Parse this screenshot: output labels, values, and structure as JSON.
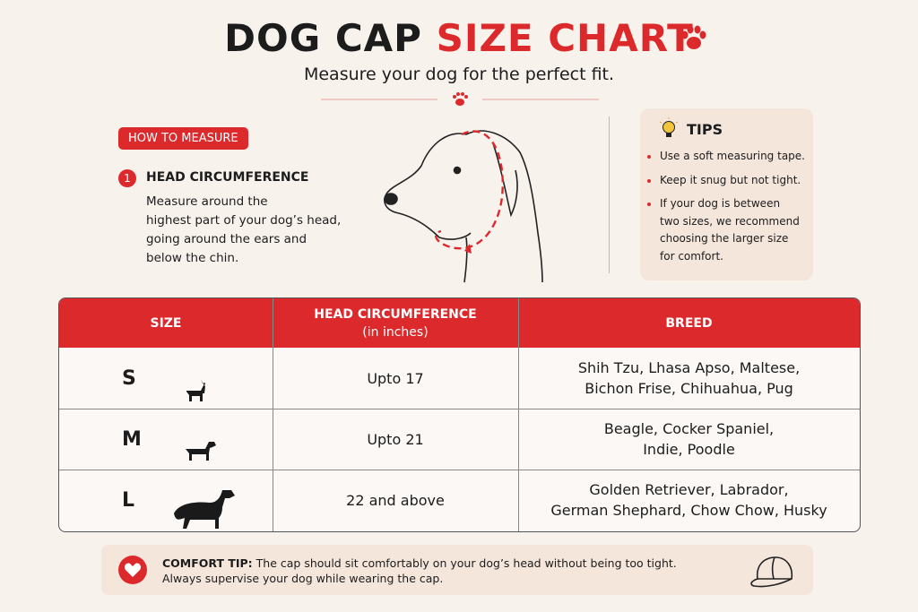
{
  "header": {
    "title_main": "DOG CAP",
    "title_accent": "SIZE CHART",
    "subtitle": "Measure your dog for the perfect fit."
  },
  "how_to_measure": {
    "badge": "HOW TO MEASURE",
    "step_number": "1",
    "step_title": "HEAD CIRCUMFERENCE",
    "step_text": [
      "Measure around the",
      "highest part of your dog’s head,",
      "going around the ears and",
      "below the chin."
    ]
  },
  "tips": {
    "title": "TIPS",
    "items": [
      [
        "Use a soft measuring tape."
      ],
      [
        "Keep it snug but not tight."
      ],
      [
        "If your dog is between",
        "two sizes, we recommend",
        "choosing the larger size",
        "for comfort."
      ]
    ]
  },
  "table": {
    "headers": [
      [
        "SIZE"
      ],
      [
        "HEAD CIRCUMFERENCE",
        "(in inches)"
      ],
      [
        "BREED"
      ]
    ],
    "rows": [
      [
        "S",
        "Upto 17",
        [
          "Shih Tzu, Lhasa Apso, Maltese,",
          "Bichon Frise, Chihuahua, Pug"
        ]
      ],
      [
        "M",
        "Upto 21",
        [
          "Beagle, Cocker Spaniel,",
          "Indie, Poodle"
        ]
      ],
      [
        "L",
        "22 and above",
        [
          "Golden Retriever, Labrador,",
          "German Shephard, Chow Chow, Husky"
        ]
      ]
    ]
  },
  "comfort_tip": {
    "label": "COMFORT TIP:",
    "text": [
      "The cap should sit comfortably on your dog’s head without being too tight.",
      "Always supervise your dog while wearing the cap."
    ]
  }
}
